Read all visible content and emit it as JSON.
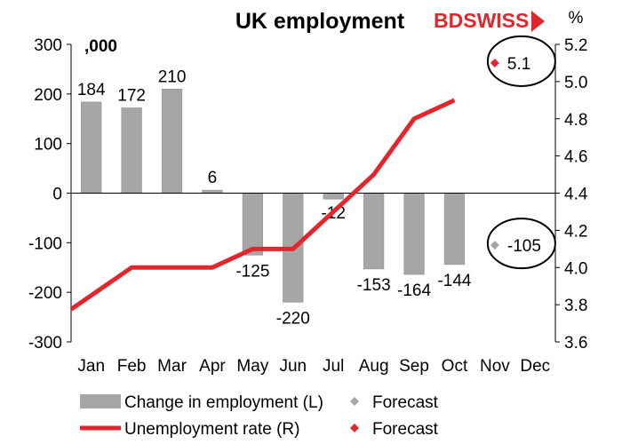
{
  "chart_data": {
    "type": "bar",
    "title": "UK employment",
    "brand": {
      "text": "BDSWISS",
      "part1": "BD",
      "part2": "SWISS",
      "color": "#e3262b"
    },
    "y_left_unit": ",000",
    "y_right_unit": "%",
    "categories": [
      "Jan",
      "Feb",
      "Mar",
      "Apr",
      "May",
      "Jun",
      "Jul",
      "Aug",
      "Sep",
      "Oct",
      "Nov",
      "Dec"
    ],
    "y_left": {
      "min": -300,
      "max": 300,
      "ticks": [
        "300",
        "200",
        "100",
        "0",
        "-100",
        "-200",
        "-300"
      ]
    },
    "y_right": {
      "min": 3.6,
      "max": 5.2,
      "ticks": [
        "5.2",
        "5.0",
        "4.8",
        "4.6",
        "4.4",
        "4.2",
        "4.0",
        "3.8",
        "3.6"
      ]
    },
    "series": [
      {
        "name": "Change in employment (L)",
        "type": "bar",
        "axis": "left",
        "color": "#a6a6a6",
        "values": [
          184,
          172,
          210,
          6,
          -125,
          -220,
          -12,
          -153,
          -164,
          -144,
          null,
          null
        ],
        "labels": [
          "184",
          "172",
          "210",
          "6",
          "-125",
          "-220",
          "-12",
          "-153",
          "-164",
          "-144",
          "",
          ""
        ]
      },
      {
        "name": "Unemployment rate (R)",
        "type": "line",
        "axis": "right",
        "color": "#e3262b",
        "values": [
          3.85,
          4.0,
          4.0,
          4.0,
          4.1,
          4.1,
          4.3,
          4.5,
          4.8,
          4.9,
          null,
          null
        ]
      },
      {
        "name": "Forecast",
        "type": "marker",
        "axis": "left",
        "color": "#a6a6a6",
        "category": "Nov",
        "value": -105,
        "label": "-105"
      },
      {
        "name": "Forecast",
        "type": "marker",
        "axis": "right",
        "color": "#e3262b",
        "category": "Nov",
        "value": 5.1,
        "label": "5.1"
      }
    ],
    "legend": [
      {
        "label": "Change in employment (L)",
        "kind": "bar",
        "color": "#a6a6a6"
      },
      {
        "label": "Forecast",
        "kind": "diamond",
        "color": "#a6a6a6"
      },
      {
        "label": "Unemployment rate (R)",
        "kind": "line",
        "color": "#e3262b"
      },
      {
        "label": "Forecast",
        "kind": "diamond",
        "color": "#e3262b"
      }
    ],
    "legend_placement": "bottom",
    "grid": false
  }
}
